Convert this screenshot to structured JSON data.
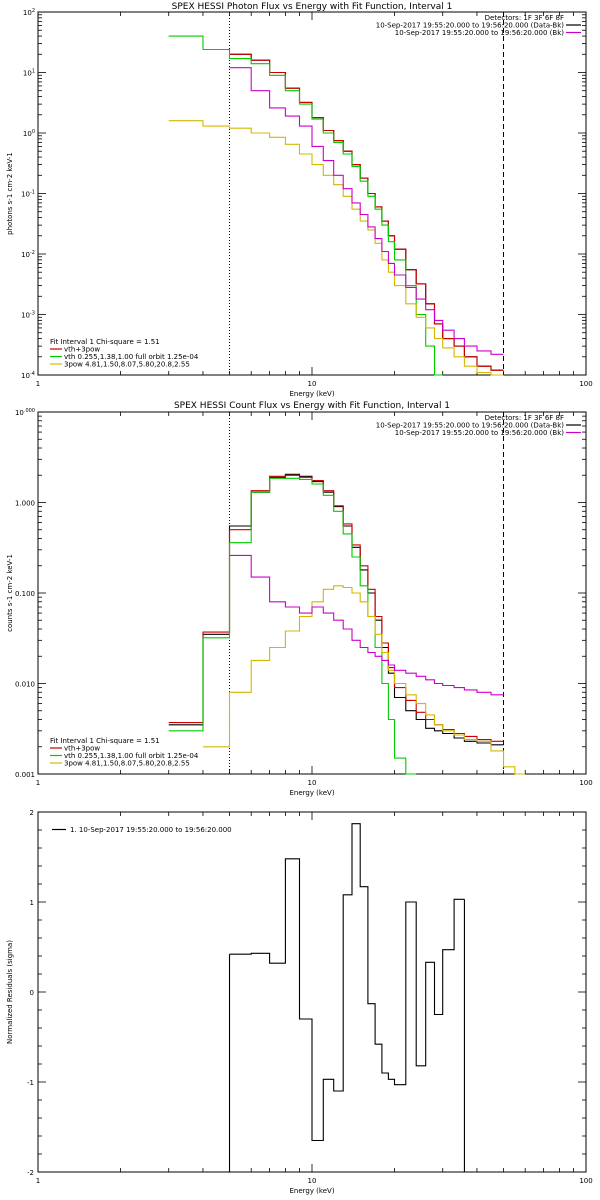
{
  "chart_data": [
    {
      "type": "line",
      "title": "SPEX HESSI Photon Flux vs Energy with Fit Function, Interval 1",
      "xlabel": "Energy (keV)",
      "ylabel": "photons s-1 cm-2 keV-1",
      "x_scale": "log",
      "y_scale": "log",
      "xlim": [
        1,
        100
      ],
      "ylim": [
        0.0001,
        100
      ],
      "x_ticks": [
        "1",
        "10",
        "100"
      ],
      "y_ticks": [
        "10-4",
        "10-3",
        "10-2",
        "10-1",
        "10^0",
        "10^1",
        "10^2"
      ],
      "header_lines": [
        "Detectors: 1F 3F 6F 8F",
        "10-Sep-2017 19:55:20.000 to 19:56:20.000 (Data-Bk)",
        "10-Sep-2017 19:55:20.000 to 19:56:20.000 (Bk)"
      ],
      "legend": {
        "placement": "bottom-left",
        "heading": "Fit Interval 1   Chi-square = 1.51",
        "entries": [
          {
            "label": "vth+3pow",
            "color": "#cc0000"
          },
          {
            "label": "vth 0.255,1.38,1.00  full orbit 1.25e-04",
            "color": "#00cc00"
          },
          {
            "label": "3pow 4.81,1.50,8.07,5.80,20.8,2.55",
            "color": "#d4b800"
          }
        ]
      },
      "vlines": [
        {
          "x": 5,
          "style": "dotted"
        },
        {
          "x": 50,
          "style": "dashed"
        }
      ],
      "bin_edges": [
        3,
        4,
        5,
        6,
        7,
        8,
        9,
        10,
        11,
        12,
        13,
        14,
        15,
        16,
        17,
        18,
        19,
        20,
        22,
        24,
        26,
        28,
        30,
        33,
        36,
        40,
        45,
        50
      ],
      "series": [
        {
          "name": "Data-Bk",
          "color": "#000000",
          "values": [
            null,
            null,
            20,
            16,
            10,
            5.5,
            3.2,
            1.8,
            1.1,
            0.75,
            0.5,
            0.3,
            0.18,
            0.1,
            0.06,
            0.035,
            0.02,
            0.012,
            0.0055,
            0.0032,
            0.0015,
            0.0007,
            0.0004,
            0.0003,
            0.0002,
            0.00014,
            0.00012
          ]
        },
        {
          "name": "vth+3pow",
          "color": "#cc0000",
          "values": [
            null,
            null,
            20,
            16,
            10,
            5.5,
            3.2,
            1.8,
            1.1,
            0.75,
            0.5,
            0.3,
            0.18,
            0.1,
            0.06,
            0.035,
            0.02,
            0.012,
            0.0055,
            0.0032,
            0.0015,
            0.0007,
            0.0004,
            0.0003,
            0.0002,
            0.00014,
            0.00012
          ]
        },
        {
          "name": "vth",
          "color": "#00cc00",
          "values": [
            40,
            24,
            17,
            14,
            9,
            5,
            3.0,
            1.7,
            1.0,
            0.7,
            0.45,
            0.28,
            0.16,
            0.09,
            0.055,
            0.03,
            0.016,
            0.008,
            0.003,
            0.001,
            0.0003,
            0.0001,
            null,
            null,
            null,
            null,
            null
          ]
        },
        {
          "name": "3pow",
          "color": "#d4b800",
          "values": [
            1.6,
            1.3,
            1.2,
            1.0,
            0.85,
            0.65,
            0.45,
            0.3,
            0.2,
            0.14,
            0.09,
            0.055,
            0.035,
            0.025,
            0.015,
            0.008,
            0.005,
            0.003,
            0.0015,
            0.0009,
            0.0006,
            0.0004,
            0.00028,
            0.0002,
            0.00014,
            0.00011,
            0.0001
          ]
        },
        {
          "name": "Bk",
          "color": "#cc00cc",
          "values": [
            null,
            null,
            12,
            5,
            2.6,
            1.9,
            1.3,
            0.6,
            0.35,
            0.2,
            0.12,
            0.07,
            0.045,
            0.028,
            0.018,
            0.011,
            0.007,
            0.0045,
            0.0028,
            0.0018,
            0.0012,
            0.0008,
            0.00055,
            0.0004,
            0.0003,
            0.00025,
            0.00022
          ]
        }
      ]
    },
    {
      "type": "line",
      "title": "SPEX HESSI Count Flux vs Energy with Fit Function, Interval 1",
      "xlabel": "Energy (keV)",
      "ylabel": "counts s-1 cm-2 keV-1",
      "x_scale": "log",
      "y_scale": "log",
      "xlim": [
        1,
        100
      ],
      "ylim": [
        0.001,
        10
      ],
      "x_ticks": [
        "1",
        "10",
        "100"
      ],
      "y_ticks": [
        "0.001",
        "0.010",
        "0.100",
        "1.000",
        "10.000"
      ],
      "header_lines": [
        "Detectors: 1F 3F 6F 8F",
        "10-Sep-2017 19:55:20.000 to 19:56:20.000 (Data-Bk)",
        "10-Sep-2017 19:55:20.000 to 19:56:20.000 (Bk)"
      ],
      "legend": {
        "placement": "bottom-left",
        "heading": "Fit Interval 1   Chi-square = 1.51",
        "entries": [
          {
            "label": "vth+3pow",
            "color": "#cc0000"
          },
          {
            "label": "vth 0.255,1.38,1.00  full orbit 1.25e-04",
            "color": "#00cc00"
          },
          {
            "label": "3pow 4.81,1.50,8.07,5.80,20.8,2.55",
            "color": "#d4b800"
          }
        ]
      },
      "vlines": [
        {
          "x": 5,
          "style": "dotted"
        },
        {
          "x": 50,
          "style": "dashed"
        }
      ],
      "bin_edges": [
        3,
        4,
        5,
        6,
        7,
        8,
        9,
        10,
        11,
        12,
        13,
        14,
        15,
        16,
        17,
        18,
        19,
        20,
        22,
        24,
        26,
        28,
        30,
        33,
        36,
        40,
        45,
        50,
        55,
        60
      ],
      "series": [
        {
          "name": "Data-Bk",
          "color": "#000000",
          "values": [
            0.0035,
            0.035,
            0.55,
            1.3,
            1.9,
            2.05,
            1.95,
            1.7,
            1.3,
            0.9,
            0.55,
            0.32,
            0.18,
            0.1,
            0.05,
            0.025,
            0.013,
            0.007,
            0.005,
            0.004,
            0.0032,
            0.003,
            0.0028,
            0.0025,
            0.0023,
            0.0022,
            0.0021,
            null,
            null
          ]
        },
        {
          "name": "vth+3pow",
          "color": "#cc0000",
          "values": [
            0.0037,
            0.037,
            0.5,
            1.35,
            1.95,
            2.0,
            1.9,
            1.75,
            1.35,
            0.92,
            0.58,
            0.34,
            0.2,
            0.11,
            0.055,
            0.028,
            0.015,
            0.009,
            0.0065,
            0.0048,
            0.004,
            0.0035,
            0.0031,
            0.0028,
            0.0026,
            0.0024,
            0.0023,
            null,
            null
          ]
        },
        {
          "name": "vth",
          "color": "#00cc00",
          "values": [
            0.003,
            0.032,
            0.36,
            1.3,
            1.85,
            1.85,
            1.8,
            1.6,
            1.2,
            0.8,
            0.45,
            0.25,
            0.12,
            0.055,
            0.025,
            0.01,
            0.004,
            0.0015,
            0.0008,
            null,
            null,
            null,
            null,
            null,
            null,
            null,
            null,
            null,
            null
          ]
        },
        {
          "name": "3pow",
          "color": "#d4b800",
          "values": [
            null,
            0.002,
            0.008,
            0.018,
            0.025,
            0.038,
            0.055,
            0.08,
            0.11,
            0.12,
            0.115,
            0.1,
            0.08,
            0.055,
            0.035,
            0.022,
            0.014,
            0.01,
            0.0075,
            0.006,
            0.0045,
            0.0035,
            0.003,
            0.0027,
            0.0024,
            0.0023,
            0.0018,
            0.0012,
            0.001
          ]
        },
        {
          "name": "Bk",
          "color": "#cc00cc",
          "values": [
            null,
            null,
            0.26,
            0.15,
            0.08,
            0.07,
            0.06,
            0.07,
            0.06,
            0.05,
            0.04,
            0.03,
            0.025,
            0.022,
            0.02,
            0.018,
            0.016,
            0.014,
            0.013,
            0.012,
            0.011,
            0.01,
            0.0095,
            0.009,
            0.0085,
            0.008,
            0.0075,
            null,
            null
          ]
        }
      ]
    },
    {
      "type": "line",
      "title": "",
      "xlabel": "Energy (keV)",
      "ylabel": "Normalized Residuals (sigma)",
      "x_scale": "log",
      "xlim": [
        1,
        100
      ],
      "ylim": [
        -2,
        2
      ],
      "x_ticks": [
        "1",
        "10",
        "100"
      ],
      "y_ticks": [
        "-2",
        "-1",
        "0",
        "1",
        "2"
      ],
      "legend": {
        "placement": "top-left",
        "entries": [
          {
            "label": "1. 10-Sep-2017 19:55:20.000 to 19:56:20.000",
            "color": "#000000"
          }
        ]
      },
      "bin_edges": [
        5,
        6,
        7,
        8,
        9,
        10,
        11,
        12,
        13,
        14,
        15,
        16,
        17,
        18,
        19,
        20,
        22,
        24,
        26,
        28,
        30,
        33,
        36,
        40,
        45,
        50
      ],
      "series": [
        {
          "name": "residuals",
          "color": "#000000",
          "values": [
            0.42,
            0.43,
            0.32,
            1.48,
            -0.3,
            -1.65,
            -0.97,
            -1.1,
            1.08,
            1.87,
            1.17,
            -0.13,
            -0.58,
            -0.9,
            -0.97,
            -1.03,
            1.0,
            -0.82,
            0.33,
            -0.25,
            0.47,
            1.03
          ]
        }
      ]
    }
  ]
}
